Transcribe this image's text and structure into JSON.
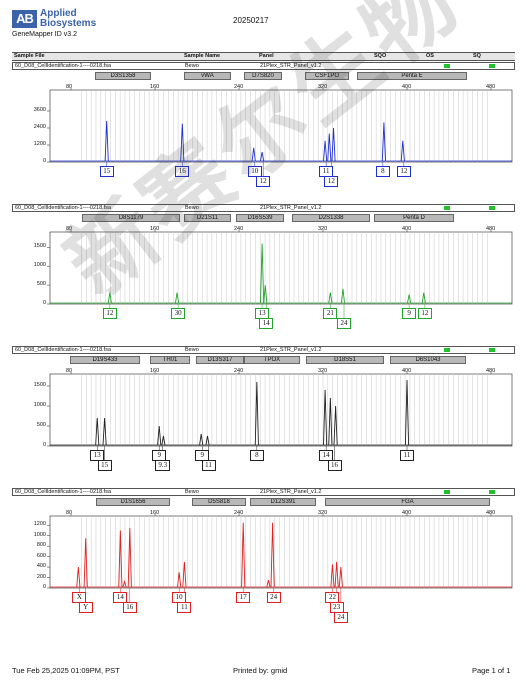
{
  "header": {
    "brand_mark": "AB",
    "brand_line1": "Applied",
    "brand_line2": "Biosystems",
    "app_version": "GeneMapper ID v3.2",
    "date": "20250217"
  },
  "columns": {
    "sample_file": "Sample File",
    "sample_name": "Sample Name",
    "panel": "Panel",
    "sqo": "SQO",
    "os": "OS",
    "sq": "SQ"
  },
  "status_color": "#22c02a",
  "x_ticks": [
    "80",
    "160",
    "240",
    "320",
    "400",
    "480"
  ],
  "watermark": "新赛尔生物",
  "panels": [
    {
      "sample_file": "60_D08_CellIdentification-1----0218.fsa",
      "sample_name": "Bewo",
      "panel": "21Plex_STR_Panel_v1.2",
      "color": "#1f2fd1",
      "y_ticks": [
        "3600",
        "2400",
        "1200",
        "0"
      ],
      "ymax": 4800,
      "markers": [
        "D3S1358",
        "vWA",
        "D7S820",
        "CSF1PO",
        "Penta E"
      ],
      "peaks": [
        [
          114,
          2900
        ],
        [
          186,
          2700
        ],
        [
          254,
          1000
        ],
        [
          262,
          700
        ],
        [
          322,
          1500
        ],
        [
          326,
          2000
        ],
        [
          330,
          2400
        ],
        [
          378,
          2800
        ],
        [
          396,
          1500
        ]
      ],
      "alleles": [
        {
          "label": "15",
          "x": 114,
          "row": 0
        },
        {
          "label": "16",
          "x": 186,
          "row": 0
        },
        {
          "label": "10",
          "x": 255,
          "row": 0
        },
        {
          "label": "12",
          "x": 263,
          "row": 1
        },
        {
          "label": "11",
          "x": 323,
          "row": 0
        },
        {
          "label": "12",
          "x": 328,
          "row": 1
        },
        {
          "label": "8",
          "x": 377,
          "row": 0
        },
        {
          "label": "12",
          "x": 397,
          "row": 0
        }
      ]
    },
    {
      "sample_file": "60_D08_CellIdentification-1----0218.fsa",
      "sample_name": "Bewo",
      "panel": "21Plex_STR_Panel_v1.2",
      "color": "#22a52c",
      "y_ticks": [
        "1500",
        "1000",
        "500",
        "0"
      ],
      "ymax": 1800,
      "markers": [
        "D8S1179",
        "D21S11",
        "D16S539",
        "D2S1338",
        "Penta D"
      ],
      "peaks": [
        [
          117,
          300
        ],
        [
          181,
          300
        ],
        [
          262,
          1600
        ],
        [
          265,
          500
        ],
        [
          327,
          300
        ],
        [
          339,
          400
        ],
        [
          402,
          250
        ],
        [
          416,
          300
        ]
      ],
      "alleles": [
        {
          "label": "12",
          "x": 117,
          "row": 0
        },
        {
          "label": "30",
          "x": 182,
          "row": 0
        },
        {
          "label": "13",
          "x": 262,
          "row": 0
        },
        {
          "label": "14",
          "x": 266,
          "row": 1
        },
        {
          "label": "21",
          "x": 327,
          "row": 0
        },
        {
          "label": "24",
          "x": 340,
          "row": 1
        },
        {
          "label": "9",
          "x": 402,
          "row": 0
        },
        {
          "label": "12",
          "x": 417,
          "row": 0
        }
      ]
    },
    {
      "sample_file": "60_D08_CellIdentification-1----0218.fsa",
      "sample_name": "Bewo",
      "panel": "21Plex_STR_Panel_v1.2",
      "color": "#222222",
      "y_ticks": [
        "1500",
        "1000",
        "500",
        "0"
      ],
      "ymax": 1700,
      "markers": [
        "D19S433",
        "TH01",
        "D13S317",
        "TPOX",
        "D18S51",
        "D6S1043"
      ],
      "peaks": [
        [
          105,
          700
        ],
        [
          112,
          700
        ],
        [
          164,
          500
        ],
        [
          168,
          250
        ],
        [
          204,
          300
        ],
        [
          210,
          250
        ],
        [
          257,
          1600
        ],
        [
          322,
          1400
        ],
        [
          327,
          1200
        ],
        [
          332,
          1000
        ],
        [
          400,
          1650
        ]
      ],
      "alleles": [
        {
          "label": "13",
          "x": 105,
          "row": 0
        },
        {
          "label": "15",
          "x": 112,
          "row": 1
        },
        {
          "label": "9",
          "x": 164,
          "row": 0
        },
        {
          "label": "9.3",
          "x": 167,
          "row": 1
        },
        {
          "label": "9",
          "x": 205,
          "row": 0
        },
        {
          "label": "11",
          "x": 211,
          "row": 1
        },
        {
          "label": "8",
          "x": 257,
          "row": 0
        },
        {
          "label": "14",
          "x": 323,
          "row": 0
        },
        {
          "label": "16",
          "x": 331,
          "row": 1
        },
        {
          "label": "11",
          "x": 400,
          "row": 0
        }
      ]
    },
    {
      "sample_file": "60_D08_CellIdentification-1----0218.fsa",
      "sample_name": "Bewo",
      "panel": "21Plex_STR_Panel_v1.2",
      "color": "#e02020",
      "y_ticks": [
        "1200",
        "1000",
        "800",
        "600",
        "400",
        "200",
        "0"
      ],
      "ymax": 1300,
      "markers": [
        "D1S1656",
        "D5S818",
        "D12S391",
        "FGA"
      ],
      "peaks": [
        [
          87,
          400
        ],
        [
          94,
          950
        ],
        [
          127,
          1100
        ],
        [
          131,
          120
        ],
        [
          136,
          1150
        ],
        [
          183,
          300
        ],
        [
          188,
          500
        ],
        [
          244,
          1250
        ],
        [
          272,
          1250
        ],
        [
          268,
          150
        ],
        [
          329,
          450
        ],
        [
          333,
          500
        ],
        [
          337,
          400
        ]
      ],
      "alleles": [
        {
          "label": "X",
          "x": 88,
          "row": 0
        },
        {
          "label": "Y",
          "x": 94,
          "row": 1
        },
        {
          "label": "14",
          "x": 127,
          "row": 0
        },
        {
          "label": "16",
          "x": 136,
          "row": 1
        },
        {
          "label": "10",
          "x": 183,
          "row": 0
        },
        {
          "label": "11",
          "x": 188,
          "row": 1
        },
        {
          "label": "17",
          "x": 244,
          "row": 0
        },
        {
          "label": "24",
          "x": 273,
          "row": 0
        },
        {
          "label": "22",
          "x": 329,
          "row": 0
        },
        {
          "label": "23",
          "x": 333,
          "row": 1
        },
        {
          "label": "24",
          "x": 337,
          "row": 2
        }
      ]
    }
  ],
  "footer": {
    "timestamp": "Tue Feb 25,2025 01:09PM, PST",
    "printed_by": "Printed by: gmid",
    "page": "Page 1 of 1"
  }
}
